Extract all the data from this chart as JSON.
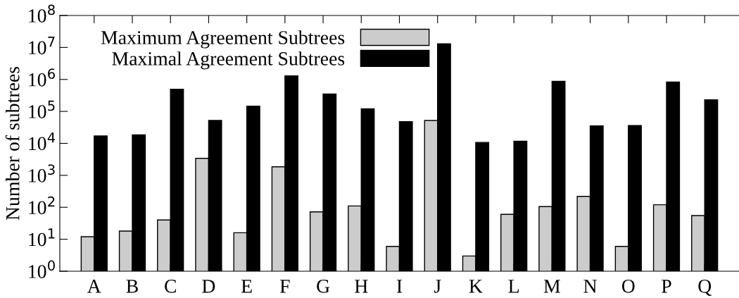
{
  "chart_data": {
    "type": "bar",
    "ylabel": "Number of subtrees",
    "categories": [
      "A",
      "B",
      "C",
      "D",
      "E",
      "F",
      "G",
      "H",
      "I",
      "J",
      "K",
      "L",
      "M",
      "N",
      "O",
      "P",
      "Q"
    ],
    "series": [
      {
        "name": "Maximum Agreement Subtrees",
        "color": "#cccccc",
        "values": [
          12,
          18,
          40,
          3400,
          16,
          1850,
          72,
          110,
          6,
          52000,
          3,
          60,
          105,
          220,
          6,
          120,
          55
        ]
      },
      {
        "name": "Maximal Agreement Subtrees",
        "color": "#000000",
        "values": [
          17000,
          18500,
          490000,
          52000,
          145000,
          1300000,
          350000,
          120000,
          48000,
          13000000,
          10700,
          11700,
          870000,
          35000,
          36000,
          830000,
          230000
        ]
      }
    ],
    "log": true,
    "ylim": [
      1,
      100000000
    ],
    "yticks": [
      {
        "value": 1,
        "label": "10$^{0}$"
      },
      {
        "value": 10,
        "label": "10$^{1}$"
      },
      {
        "value": 100,
        "label": "10$^{2}$"
      },
      {
        "value": 1000,
        "label": "10$^{3}$"
      },
      {
        "value": 10000,
        "label": "10$^{4}$"
      },
      {
        "value": 100000,
        "label": "10$^{5}$"
      },
      {
        "value": 1000000,
        "label": "10$^{6}$"
      },
      {
        "value": 10000000,
        "label": "10$^{7}$"
      },
      {
        "value": 100000000,
        "label": "10$^{8}$"
      }
    ],
    "grid": false,
    "legend": "top left"
  }
}
